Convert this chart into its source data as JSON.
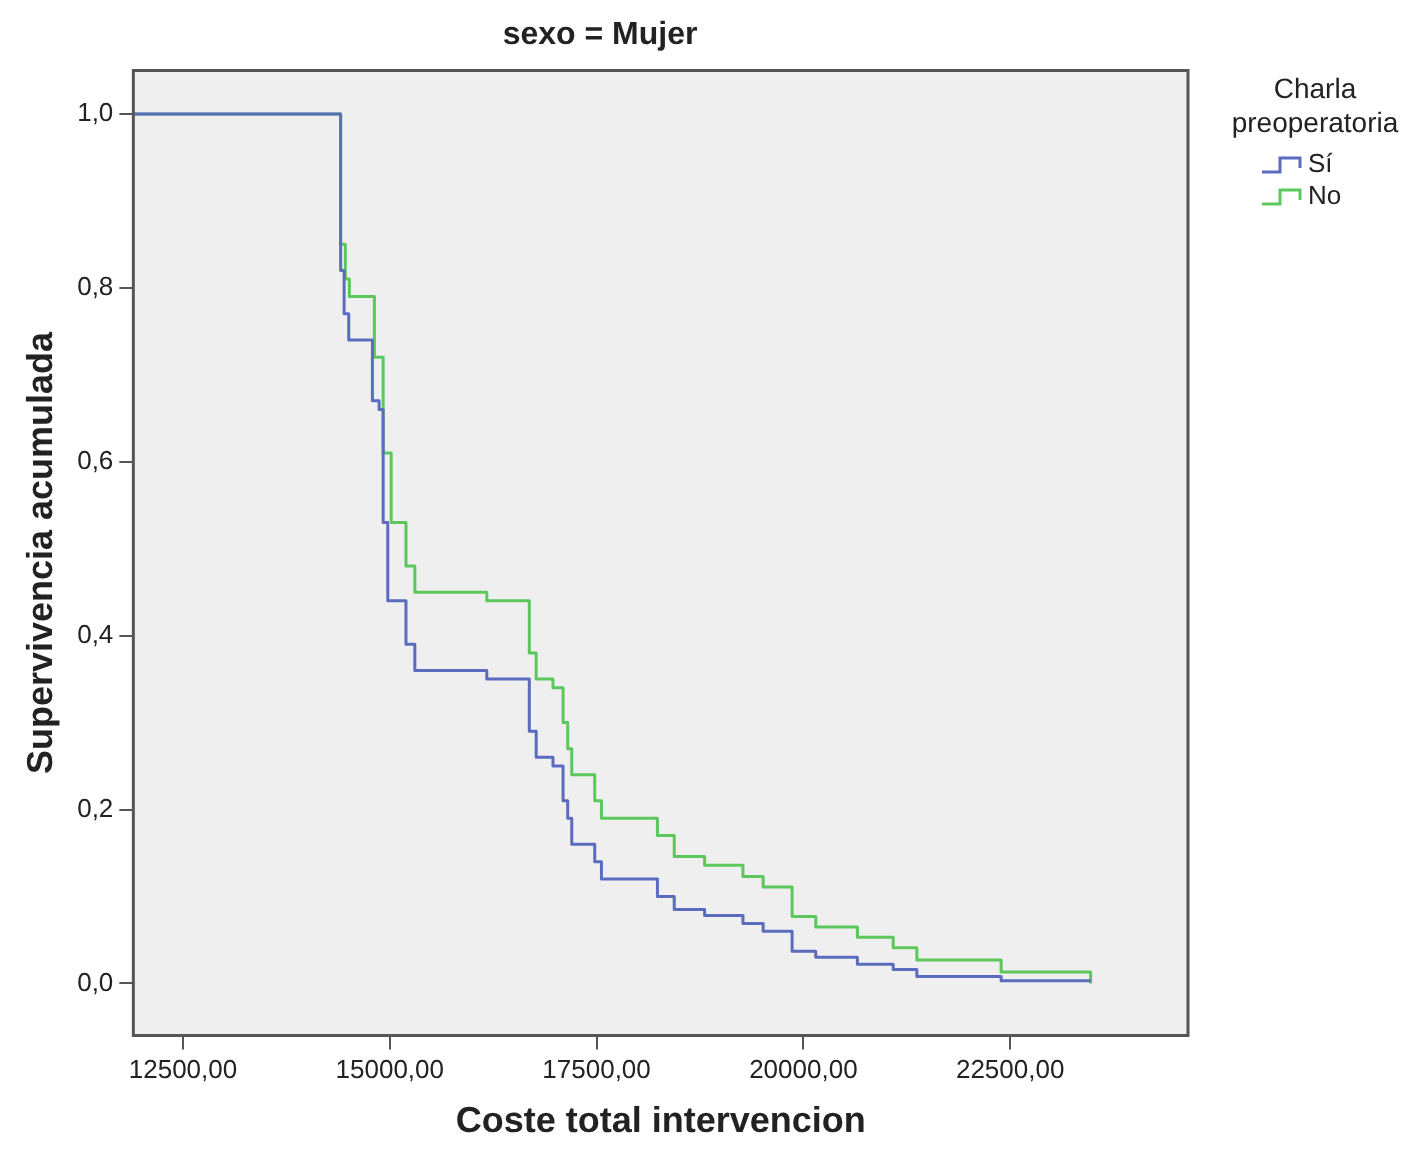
{
  "chart_data": {
    "type": "step",
    "title": "sexo = Mujer",
    "xlabel": "Coste total intervencion",
    "ylabel": "Supervivencia acumulada",
    "legend_title": "Charla preoperatoria",
    "legend": "top right",
    "grid": false,
    "line_style": "solid",
    "marker": "none",
    "xlim": [
      11900,
      24650
    ],
    "ylim": [
      -0.06,
      1.05
    ],
    "xticks": [
      {
        "value": 12500,
        "label": "12500,00"
      },
      {
        "value": 15000,
        "label": "15000,00"
      },
      {
        "value": 17500,
        "label": "17500,00"
      },
      {
        "value": 20000,
        "label": "20000,00"
      },
      {
        "value": 22500,
        "label": "22500,00"
      }
    ],
    "yticks": [
      {
        "value": 0,
        "label": "0,0"
      },
      {
        "value": 0.2,
        "label": "0,2"
      },
      {
        "value": 0.4,
        "label": "0,4"
      },
      {
        "value": 0.6,
        "label": "0,6"
      },
      {
        "value": 0.8,
        "label": "0,8"
      },
      {
        "value": 1,
        "label": "1,0"
      }
    ],
    "series": [
      {
        "name": "Sí",
        "color": "#5b6cbf",
        "x": [
          11900,
          14406,
          14448,
          14504,
          14790,
          14871,
          14920,
          14976,
          15196,
          15303,
          16173,
          16687,
          16770,
          16973,
          17095,
          17151,
          17200,
          17478,
          17559,
          18236,
          18439,
          18806,
          19270,
          19514,
          19864,
          20150,
          20653,
          21086,
          21372,
          22391,
          23473
        ],
        "values": [
          1.0,
          0.82,
          0.77,
          0.74,
          0.67,
          0.66,
          0.53,
          0.44,
          0.39,
          0.36,
          0.35,
          0.29,
          0.26,
          0.25,
          0.21,
          0.19,
          0.16,
          0.14,
          0.12,
          0.1,
          0.085,
          0.078,
          0.069,
          0.06,
          0.037,
          0.03,
          0.022,
          0.016,
          0.008,
          0.003,
          0.003
        ]
      },
      {
        "name": "No",
        "color": "#5cc85c",
        "x": [
          11900,
          14406,
          14463,
          14511,
          14814,
          14920,
          15017,
          15196,
          15303,
          16173,
          16687,
          16770,
          16973,
          17095,
          17151,
          17200,
          17478,
          17559,
          18236,
          18439,
          18806,
          19270,
          19514,
          19864,
          20150,
          20653,
          21086,
          21372,
          22391,
          23473
        ],
        "values": [
          1.0,
          0.85,
          0.81,
          0.79,
          0.72,
          0.61,
          0.53,
          0.48,
          0.45,
          0.44,
          0.38,
          0.35,
          0.34,
          0.3,
          0.27,
          0.24,
          0.21,
          0.19,
          0.17,
          0.146,
          0.136,
          0.123,
          0.111,
          0.077,
          0.065,
          0.053,
          0.041,
          0.027,
          0.013,
          0.0
        ]
      }
    ]
  }
}
